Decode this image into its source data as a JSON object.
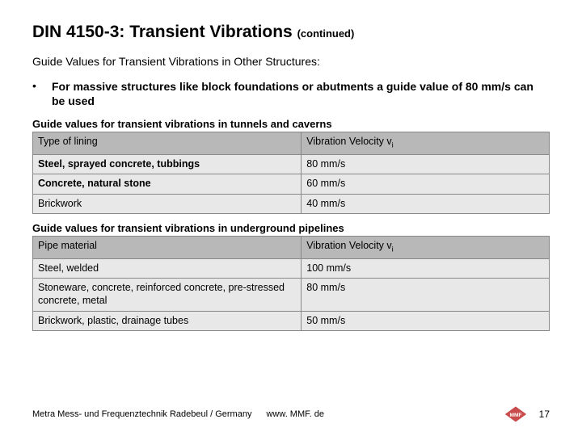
{
  "title_main": "DIN 4150-3: Transient Vibrations",
  "title_cont": "(continued)",
  "subtitle": "Guide Values for Transient Vibrations in Other Structures:",
  "bullet_marker": "•",
  "bullet_text": "For massive structures like block foundations or abutments a guide value of 80 mm/s can be used",
  "table1": {
    "caption": "Guide values for transient vibrations in tunnels and caverns",
    "col1_header": "Type of lining",
    "col2_header_pre": "Vibration Velocity v",
    "col2_header_sub": "i",
    "rows": [
      {
        "label": "Steel, sprayed concrete, tubbings",
        "value": "80 mm/s",
        "bold": true
      },
      {
        "label": "Concrete, natural stone",
        "value": "60 mm/s",
        "bold": true
      },
      {
        "label": "Brickwork",
        "value": "40 mm/s",
        "bold": false
      }
    ]
  },
  "table2": {
    "caption": "Guide values for transient vibrations in underground pipelines",
    "col1_header": "Pipe material",
    "col2_header_pre": "Vibration Velocity v",
    "col2_header_sub": "i",
    "rows": [
      {
        "label": "Steel, welded",
        "value": "100 mm/s",
        "bold": false
      },
      {
        "label": "Stoneware, concrete, reinforced concrete, pre-stressed concrete, metal",
        "value": "80 mm/s",
        "bold": false
      },
      {
        "label": "Brickwork, plastic, drainage tubes",
        "value": "50 mm/s",
        "bold": false
      }
    ]
  },
  "footer": {
    "org": "Metra Mess- und Frequenztechnik Radebeul / Germany",
    "url": "www. MMF. de",
    "page": "17"
  },
  "colors": {
    "header_bg": "#b8b8b8",
    "row_bg": "#e8e8e8",
    "logo_fill": "#c94b4b",
    "logo_text": "#ffffff"
  }
}
